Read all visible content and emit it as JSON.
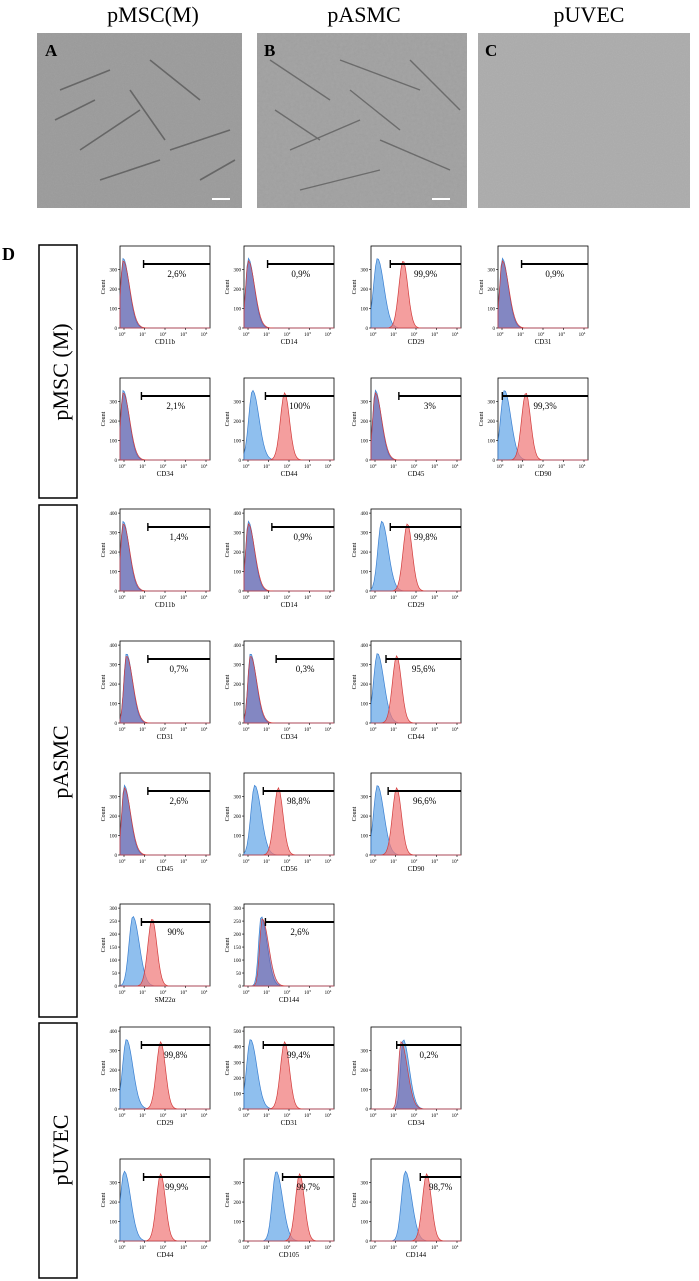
{
  "micrographs": {
    "column_titles": [
      "pMSC(M)",
      "pASMC",
      "pUVEC"
    ],
    "panel_letters": [
      "A",
      "B",
      "C"
    ]
  },
  "panel_d_label": "D",
  "axis": {
    "y_label": "Count",
    "x_ticks": [
      "10",
      "10",
      "10",
      "10",
      "10"
    ],
    "x_tick_exponents": [
      "0",
      "1",
      "2",
      "3",
      "4"
    ]
  },
  "colors": {
    "isotype": "#6aa9e8",
    "isotype_stroke": "#3a7fd0",
    "marker": "#f07878",
    "marker_stroke": "#d23c3c",
    "overlap": "#7a5a9e"
  },
  "groups": [
    {
      "name": "pMSC (M)",
      "rows": [
        [
          {
            "marker": "CD11b",
            "percent": "2,6%",
            "gate_start_log": 1.1,
            "ymax": 400,
            "yticks": [
              "0",
              "100",
              "200",
              "300"
            ],
            "iso_peak_log": 0.15,
            "mark_peak_log": 0.15,
            "overlap": true
          },
          {
            "marker": "CD14",
            "percent": "0,9%",
            "gate_start_log": 1.1,
            "ymax": 400,
            "yticks": [
              "0",
              "100",
              "200",
              "300"
            ],
            "iso_peak_log": 0.2,
            "mark_peak_log": 0.2,
            "overlap": true
          },
          {
            "marker": "CD29",
            "percent": "99,9%",
            "gate_start_log": 0.9,
            "ymax": 400,
            "yticks": [
              "0",
              "100",
              "200",
              "300"
            ],
            "iso_peak_log": 0.3,
            "mark_peak_log": 1.5,
            "overlap": false
          },
          {
            "marker": "CD31",
            "percent": "0,9%",
            "gate_start_log": 1.1,
            "ymax": 400,
            "yticks": [
              "0",
              "100",
              "200",
              "300"
            ],
            "iso_peak_log": 0.2,
            "mark_peak_log": 0.2,
            "overlap": true
          }
        ],
        [
          {
            "marker": "CD34",
            "percent": "2,1%",
            "gate_start_log": 1.0,
            "ymax": 400,
            "yticks": [
              "0",
              "100",
              "200",
              "300"
            ],
            "iso_peak_log": 0.15,
            "mark_peak_log": 0.15,
            "overlap": true
          },
          {
            "marker": "CD44",
            "percent": "100%",
            "gate_start_log": 1.0,
            "ymax": 400,
            "yticks": [
              "0",
              "100",
              "200",
              "300"
            ],
            "iso_peak_log": 0.4,
            "mark_peak_log": 1.9,
            "overlap": false
          },
          {
            "marker": "CD45",
            "percent": "3%",
            "gate_start_log": 1.3,
            "ymax": 400,
            "yticks": [
              "0",
              "100",
              "200",
              "300"
            ],
            "iso_peak_log": 0.2,
            "mark_peak_log": 0.2,
            "overlap": true
          },
          {
            "marker": "CD90",
            "percent": "99,3%",
            "gate_start_log": 0.2,
            "ymax": 400,
            "yticks": [
              "0",
              "100",
              "200",
              "300"
            ],
            "iso_peak_log": 0.3,
            "mark_peak_log": 1.3,
            "overlap": false
          }
        ]
      ]
    },
    {
      "name": "pASMC",
      "rows": [
        [
          {
            "marker": "CD11b",
            "percent": "1,4%",
            "gate_start_log": 1.3,
            "ymax": 400,
            "yticks": [
              "0",
              "100",
              "200",
              "300",
              "400"
            ],
            "iso_peak_log": 0.15,
            "mark_peak_log": 0.15,
            "overlap": true
          },
          {
            "marker": "CD14",
            "percent": "0,9%",
            "gate_start_log": 1.3,
            "ymax": 400,
            "yticks": [
              "0",
              "100",
              "200",
              "300",
              "400"
            ],
            "iso_peak_log": 0.2,
            "mark_peak_log": 0.2,
            "overlap": true
          },
          {
            "marker": "CD29",
            "percent": "99,8%",
            "gate_start_log": 0.9,
            "ymax": 400,
            "yticks": [
              "0",
              "100",
              "200",
              "300",
              "400"
            ],
            "iso_peak_log": 0.5,
            "mark_peak_log": 1.7,
            "overlap": false
          }
        ],
        [
          {
            "marker": "CD31",
            "percent": "0,7%",
            "gate_start_log": 1.3,
            "ymax": 400,
            "yticks": [
              "0",
              "100",
              "200",
              "300",
              "400"
            ],
            "iso_peak_log": 0.3,
            "mark_peak_log": 0.3,
            "overlap": true
          },
          {
            "marker": "CD34",
            "percent": "0,3%",
            "gate_start_log": 1.5,
            "ymax": 400,
            "yticks": [
              "0",
              "100",
              "200",
              "300",
              "400"
            ],
            "iso_peak_log": 0.3,
            "mark_peak_log": 0.3,
            "overlap": true
          },
          {
            "marker": "CD44",
            "percent": "95,6%",
            "gate_start_log": 0.7,
            "ymax": 400,
            "yticks": [
              "0",
              "100",
              "200",
              "300",
              "400"
            ],
            "iso_peak_log": 0.3,
            "mark_peak_log": 1.2,
            "overlap": false
          }
        ],
        [
          {
            "marker": "CD45",
            "percent": "2,6%",
            "gate_start_log": 1.3,
            "ymax": 400,
            "yticks": [
              "0",
              "100",
              "200",
              "300"
            ],
            "iso_peak_log": 0.2,
            "mark_peak_log": 0.2,
            "overlap": true
          },
          {
            "marker": "CD56",
            "percent": "98,8%",
            "gate_start_log": 0.9,
            "ymax": 400,
            "yticks": [
              "0",
              "100",
              "200",
              "300"
            ],
            "iso_peak_log": 0.5,
            "mark_peak_log": 1.6,
            "overlap": false
          },
          {
            "marker": "CD90",
            "percent": "96,6%",
            "gate_start_log": 0.8,
            "ymax": 400,
            "yticks": [
              "0",
              "100",
              "200",
              "300"
            ],
            "iso_peak_log": 0.3,
            "mark_peak_log": 1.2,
            "overlap": false
          }
        ],
        [
          {
            "marker": "SM22α",
            "percent": "90%",
            "gate_start_log": 1.0,
            "ymax": 300,
            "yticks": [
              "0",
              "50",
              "100",
              "150",
              "200",
              "250",
              "300"
            ],
            "iso_peak_log": 0.6,
            "mark_peak_log": 1.5,
            "overlap": false
          },
          {
            "marker": "CD144",
            "percent": "2,6%",
            "gate_start_log": 1.0,
            "ymax": 300,
            "yticks": [
              "0",
              "50",
              "100",
              "150",
              "200",
              "250",
              "300"
            ],
            "iso_peak_log": 0.8,
            "mark_peak_log": 0.85,
            "overlap": true
          }
        ]
      ]
    },
    {
      "name": "pUVEC",
      "rows": [
        [
          {
            "marker": "CD29",
            "percent": "99,8%",
            "gate_start_log": 1.0,
            "ymax": 400,
            "yticks": [
              "0",
              "100",
              "200",
              "300",
              "400"
            ],
            "iso_peak_log": 0.3,
            "mark_peak_log": 1.9,
            "overlap": false
          },
          {
            "marker": "CD31",
            "percent": "99,4%",
            "gate_start_log": 0.9,
            "ymax": 500,
            "yticks": [
              "0",
              "100",
              "200",
              "300",
              "400",
              "500"
            ],
            "iso_peak_log": 0.3,
            "mark_peak_log": 1.9,
            "overlap": false
          },
          {
            "marker": "CD34",
            "percent": "0,2%",
            "gate_start_log": 1.2,
            "ymax": 400,
            "yticks": [
              "0",
              "100",
              "200",
              "300"
            ],
            "iso_peak_log": 1.5,
            "mark_peak_log": 1.4,
            "overlap": true
          }
        ],
        [
          {
            "marker": "CD44",
            "percent": "99,9%",
            "gate_start_log": 1.1,
            "ymax": 400,
            "yticks": [
              "0",
              "100",
              "200",
              "300"
            ],
            "iso_peak_log": 0.2,
            "mark_peak_log": 1.9,
            "overlap": false
          },
          {
            "marker": "CD105",
            "percent": "99,7%",
            "gate_start_log": 1.8,
            "ymax": 400,
            "yticks": [
              "0",
              "100",
              "200",
              "300"
            ],
            "iso_peak_log": 1.5,
            "mark_peak_log": 2.6,
            "overlap": false
          },
          {
            "marker": "CD144",
            "percent": "98,7%",
            "gate_start_log": 2.3,
            "ymax": 400,
            "yticks": [
              "0",
              "100",
              "200",
              "300"
            ],
            "iso_peak_log": 1.6,
            "mark_peak_log": 2.6,
            "overlap": false
          }
        ]
      ]
    }
  ]
}
